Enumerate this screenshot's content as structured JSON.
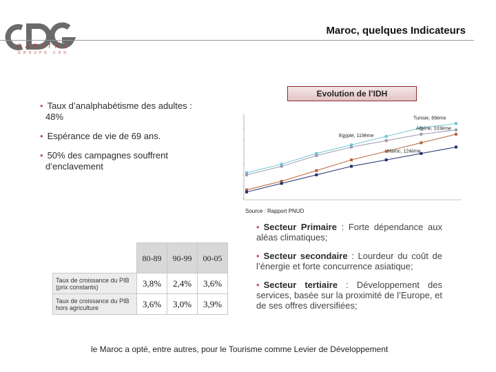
{
  "header": {
    "logo_text": "CDG",
    "logo_sub": "CAPITAL",
    "logo_sub2": "GROUPE CDG",
    "title": "Maroc, quelques Indicateurs"
  },
  "left_bullets": [
    {
      "line1": "Taux d’analphabétisme des adultes :",
      "line2": "48%"
    },
    {
      "line1": "Espérance de vie de 69 ans.",
      "line2": ""
    },
    {
      "line1": "50%  des  campagnes  souffrent",
      "line2": "d’enclavement"
    }
  ],
  "chart_title": "Evolution de l’IDH",
  "chart_source": "Source : Rapport PNUD",
  "chart_data": {
    "type": "line",
    "title": "Evolution de l’IDH",
    "series": [
      {
        "name": "Tunisie, 89ème",
        "color": "#6cc5d6",
        "values": [
          0.52,
          0.56,
          0.61,
          0.65,
          0.69,
          0.73,
          0.75
        ]
      },
      {
        "name": "Algérie, 103ème",
        "color": "#9a9ab0",
        "values": [
          0.51,
          0.55,
          0.6,
          0.64,
          0.67,
          0.7,
          0.72
        ]
      },
      {
        "name": "Egypte, 119ème",
        "color": "#b5643a",
        "values": [
          0.44,
          0.48,
          0.53,
          0.58,
          0.62,
          0.66,
          0.7
        ]
      },
      {
        "name": "Maroc, 124ème",
        "color": "#1f2f6b",
        "values": [
          0.43,
          0.47,
          0.51,
          0.55,
          0.58,
          0.61,
          0.64
        ]
      }
    ]
  },
  "right_bullets": [
    {
      "term": "Secteur Primaire",
      "desc": " : Forte dépendance aux aléas climatiques;"
    },
    {
      "term": "Secteur secondaire",
      "desc": " : Lourdeur du coût de l’énergie et forte concurrence asiatique;"
    },
    {
      "term": "Secteur tertiaire",
      "desc": " : Développement des services, basée sur la proximité de l’Europe, et de ses offres diversifiées;"
    }
  ],
  "table": {
    "headers": [
      "80-89",
      "90-99",
      "00-05"
    ],
    "rows": [
      {
        "label": "Taux de croissance du PIB (prix constants)",
        "values": [
          "3,8%",
          "2,4%",
          "3,6%"
        ]
      },
      {
        "label": "Taux de croissance du PIB hors agriculture",
        "values": [
          "3,6%",
          "3,0%",
          "3,9%"
        ]
      }
    ]
  },
  "closing": "le Maroc a  opté, entre autres, pour le Tourisme comme Levier de Développement"
}
